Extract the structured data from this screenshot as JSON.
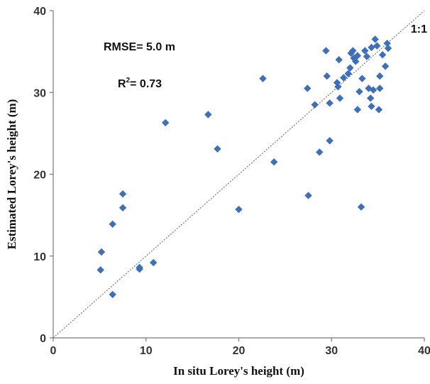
{
  "chart_data": {
    "type": "scatter",
    "xlabel": "In situ Lorey's height (m)",
    "ylabel": "Estimated Lorey's height (m)",
    "xlim": [
      0,
      40
    ],
    "ylim": [
      0,
      40
    ],
    "x_ticks": [
      "0",
      "10",
      "20",
      "30",
      "40"
    ],
    "y_ticks": [
      "0",
      "10",
      "20",
      "30",
      "40"
    ],
    "grid": false,
    "marker_color": "#3E6FB8",
    "line_color": "#777777",
    "reference_line": {
      "label": "1:1",
      "style": "dotted"
    },
    "annotations": {
      "rmse": "RMSE= 5.0 m",
      "r2_base": "R",
      "r2_sup": "2",
      "r2_rest": "= 0.73"
    },
    "series": [
      {
        "points": [
          [
            5.2,
            10.5
          ],
          [
            5.1,
            8.3
          ],
          [
            6.4,
            5.3
          ],
          [
            6.4,
            13.9
          ],
          [
            7.5,
            17.6
          ],
          [
            7.5,
            15.9
          ],
          [
            9.3,
            8.6
          ],
          [
            9.3,
            8.4
          ],
          [
            10.8,
            9.2
          ],
          [
            12.1,
            26.3
          ],
          [
            16.7,
            27.3
          ],
          [
            17.7,
            23.1
          ],
          [
            20.0,
            15.7
          ],
          [
            22.6,
            31.7
          ],
          [
            23.8,
            21.5
          ],
          [
            27.4,
            30.5
          ],
          [
            27.5,
            17.4
          ],
          [
            28.2,
            28.5
          ],
          [
            28.7,
            22.7
          ],
          [
            29.4,
            35.1
          ],
          [
            29.5,
            32.0
          ],
          [
            29.8,
            28.7
          ],
          [
            29.8,
            24.1
          ],
          [
            30.6,
            31.2
          ],
          [
            30.7,
            30.7
          ],
          [
            30.9,
            29.3
          ],
          [
            30.8,
            34.0
          ],
          [
            31.3,
            31.8
          ],
          [
            31.8,
            32.3
          ],
          [
            32.0,
            33.0
          ],
          [
            32.1,
            34.8
          ],
          [
            32.3,
            35.1
          ],
          [
            32.4,
            34.2
          ],
          [
            32.6,
            33.8
          ],
          [
            32.8,
            34.5
          ],
          [
            32.8,
            27.9
          ],
          [
            33.0,
            30.1
          ],
          [
            33.2,
            16.0
          ],
          [
            33.3,
            31.7
          ],
          [
            33.6,
            35.1
          ],
          [
            33.8,
            34.4
          ],
          [
            34.0,
            30.5
          ],
          [
            34.2,
            29.3
          ],
          [
            34.3,
            28.3
          ],
          [
            34.3,
            35.5
          ],
          [
            34.5,
            30.3
          ],
          [
            34.7,
            36.5
          ],
          [
            34.9,
            35.7
          ],
          [
            35.1,
            27.9
          ],
          [
            35.2,
            32.0
          ],
          [
            35.2,
            30.5
          ],
          [
            35.5,
            34.6
          ],
          [
            35.8,
            33.2
          ],
          [
            36.0,
            36.0
          ],
          [
            36.1,
            35.4
          ]
        ]
      }
    ]
  }
}
